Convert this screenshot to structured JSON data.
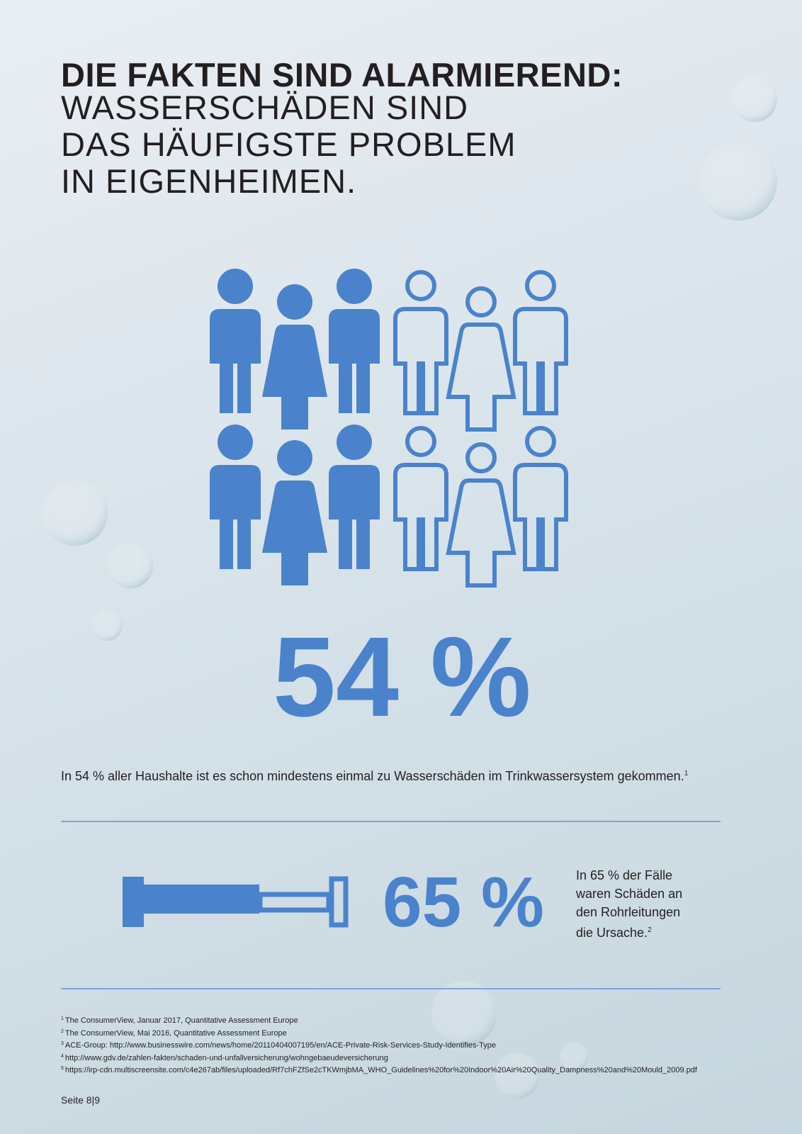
{
  "header": {
    "title": "DIE FAKTEN SIND ALARMIEREND:",
    "subtitle_lines": [
      "WASSERSCHÄDEN SIND",
      "DAS HÄUFIGSTE PROBLEM",
      "IN EIGENHEIMEN."
    ]
  },
  "stat1": {
    "value": "54 %",
    "text": "In 54 % aller Haushalte ist es schon mindestens einmal zu Wasserschäden im Trinkwassersystem gekommen.",
    "note": "1"
  },
  "stat2": {
    "value": "65 %",
    "text_lines": [
      "In 65 % der Fälle",
      "waren Schäden an",
      "den Rohrleitungen",
      "die Ursache."
    ],
    "note": "2"
  },
  "footnotes": [
    {
      "mark": "1",
      "text": "The ConsumerView, Januar 2017, Quantitative Assessment Europe"
    },
    {
      "mark": "2",
      "text": "The ConsumerView, Mai 2016, Quantitative Assessment Europe"
    },
    {
      "mark": "3",
      "text": "ACE-Group: http://www.businesswire.com/news/home/20110404007195/en/ACE-Private-Risk-Services-Study-Identifies-Type"
    },
    {
      "mark": "4",
      "text": "http://www.gdv.de/zahlen-fakten/schaden-und-unfallversicherung/wohngebaeudeversicherung"
    },
    {
      "mark": "5",
      "text": "https://irp-cdn.multiscreensite.com/c4e267ab/files/uploaded/Rf7chFZfSe2cTKWmjbMA_WHO_Guidelines%20for%20Indoor%20Air%20Quality_Dampness%20and%20Mould_2009.pdf"
    }
  ],
  "footer": {
    "page": "Seite 8|9"
  }
}
